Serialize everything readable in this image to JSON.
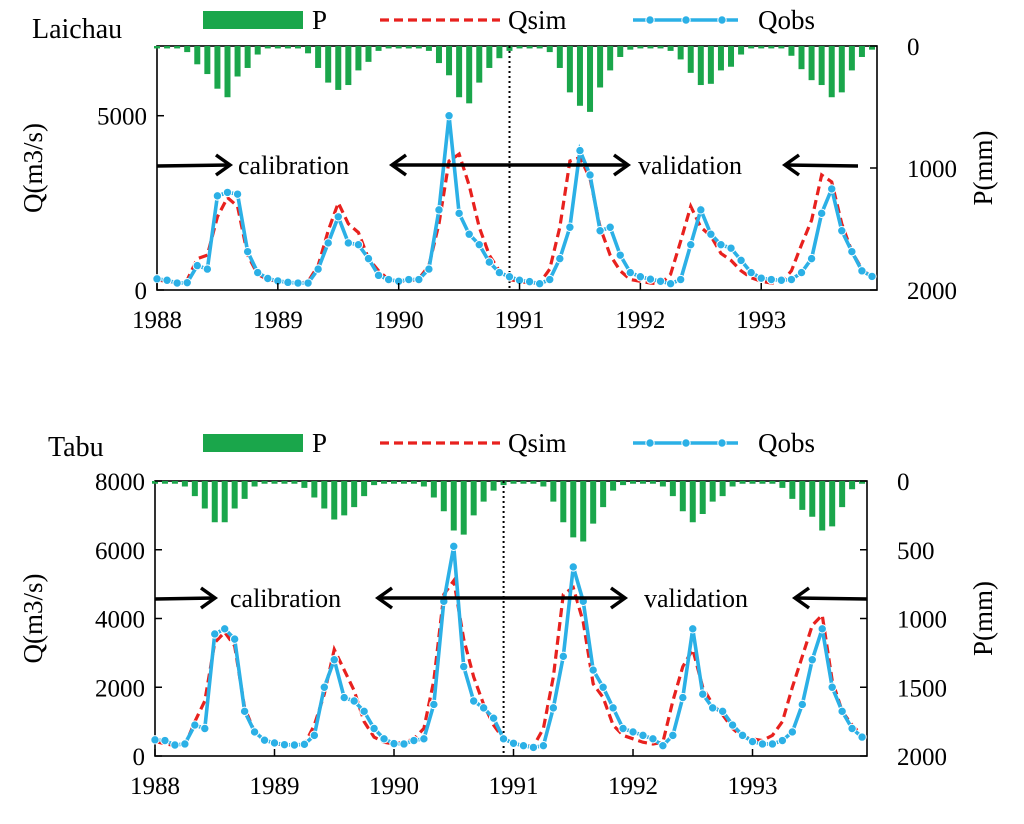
{
  "chart_data": [
    {
      "type": "line",
      "station_label": "Laichau",
      "xlabel": "",
      "ylabel": "Q(m3/s)",
      "y2label": "P(mm)",
      "xlim": [
        1988.0,
        1993.958
      ],
      "ylim": [
        0,
        7000
      ],
      "y_ticks": [
        0,
        5000
      ],
      "y2lim": [
        0,
        2000
      ],
      "y2_ticks": [
        0,
        1000,
        2000
      ],
      "y2_reversed": true,
      "x_ticks": [
        "1988",
        "1989",
        "1990",
        "1991",
        "1992",
        "1993"
      ],
      "divider_x": 1990.917,
      "annotations": {
        "calibration": "calibration",
        "validation": "validation"
      },
      "legend": [
        {
          "name": "P",
          "style": "bar",
          "color": "#1aa64b"
        },
        {
          "name": "Qsim",
          "style": "dashed",
          "color": "#e8211e"
        },
        {
          "name": "Qobs",
          "style": "line-marker",
          "color": "#2bb0e6"
        }
      ],
      "series": [
        {
          "name": "P",
          "kind": "bar",
          "axis": "y2",
          "color": "#1aa64b",
          "values": [
            20,
            20,
            20,
            50,
            150,
            230,
            350,
            420,
            250,
            180,
            70,
            20,
            20,
            20,
            20,
            60,
            180,
            300,
            360,
            320,
            200,
            130,
            40,
            20,
            20,
            20,
            20,
            40,
            140,
            240,
            420,
            470,
            300,
            180,
            100,
            40,
            20,
            20,
            20,
            50,
            180,
            380,
            490,
            540,
            340,
            200,
            90,
            30,
            20,
            20,
            20,
            40,
            110,
            220,
            320,
            310,
            200,
            170,
            70,
            20,
            20,
            20,
            20,
            80,
            190,
            280,
            320,
            420,
            380,
            200,
            90,
            30
          ]
        },
        {
          "name": "Qsim",
          "kind": "line",
          "axis": "y1",
          "color": "#e8211e",
          "values": [
            290,
            250,
            210,
            290,
            900,
            1000,
            2100,
            2650,
            2400,
            1000,
            450,
            300,
            250,
            210,
            180,
            240,
            700,
            1700,
            2500,
            1900,
            1650,
            900,
            550,
            300,
            250,
            250,
            320,
            700,
            1900,
            3700,
            3900,
            3000,
            1800,
            1000,
            550,
            300,
            250,
            200,
            200,
            600,
            1800,
            3700,
            3800,
            3200,
            1800,
            1000,
            550,
            300,
            250,
            200,
            170,
            450,
            1400,
            2400,
            1800,
            1550,
            1050,
            850,
            550,
            350,
            250,
            200,
            220,
            550,
            1300,
            2000,
            3300,
            3100,
            1900,
            1100,
            600,
            350
          ]
        },
        {
          "name": "Qobs",
          "kind": "line",
          "axis": "y1",
          "color": "#2bb0e6",
          "values": [
            320,
            280,
            200,
            210,
            700,
            600,
            2700,
            2800,
            2750,
            1100,
            500,
            330,
            260,
            220,
            200,
            200,
            600,
            1350,
            2100,
            1350,
            1300,
            900,
            420,
            300,
            250,
            300,
            300,
            600,
            2300,
            5000,
            2200,
            1600,
            1300,
            800,
            500,
            380,
            280,
            240,
            180,
            300,
            900,
            1800,
            4000,
            3300,
            1700,
            1800,
            1000,
            500,
            380,
            310,
            250,
            180,
            300,
            1300,
            2300,
            1600,
            1300,
            1200,
            850,
            500,
            340,
            300,
            280,
            300,
            500,
            900,
            2200,
            2900,
            1700,
            1100,
            550,
            390
          ]
        }
      ]
    },
    {
      "type": "line",
      "station_label": "Tabu",
      "xlabel": "",
      "ylabel": "Q(m3/s)",
      "y2label": "P(mm)",
      "xlim": [
        1988.0,
        1993.958
      ],
      "ylim": [
        0,
        8000
      ],
      "y_ticks": [
        0,
        2000,
        4000,
        6000,
        8000
      ],
      "y2lim": [
        0,
        2000
      ],
      "y2_ticks": [
        0,
        500,
        1000,
        1500,
        2000
      ],
      "y2_reversed": true,
      "x_ticks": [
        "1988",
        "1989",
        "1990",
        "1991",
        "1992",
        "1993"
      ],
      "divider_x": 1990.917,
      "annotations": {
        "calibration": "calibration",
        "validation": "validation"
      },
      "legend": [
        {
          "name": "P",
          "style": "bar",
          "color": "#1aa64b"
        },
        {
          "name": "Qsim",
          "style": "dashed",
          "color": "#e8211e"
        },
        {
          "name": "Qobs",
          "style": "line-marker",
          "color": "#2bb0e6"
        }
      ],
      "series": [
        {
          "name": "P",
          "kind": "bar",
          "axis": "y2",
          "color": "#1aa64b",
          "values": [
            20,
            20,
            20,
            40,
            110,
            200,
            300,
            300,
            200,
            130,
            40,
            20,
            20,
            20,
            20,
            50,
            120,
            200,
            280,
            250,
            190,
            110,
            30,
            20,
            20,
            20,
            20,
            40,
            120,
            220,
            360,
            390,
            250,
            150,
            70,
            30,
            20,
            20,
            20,
            40,
            150,
            300,
            410,
            440,
            310,
            190,
            70,
            30,
            20,
            20,
            20,
            40,
            110,
            220,
            300,
            240,
            150,
            110,
            40,
            20,
            20,
            20,
            20,
            50,
            130,
            210,
            260,
            360,
            330,
            190,
            60,
            20
          ]
        },
        {
          "name": "Qsim",
          "kind": "line",
          "axis": "y1",
          "color": "#e8211e",
          "values": [
            420,
            360,
            300,
            300,
            1000,
            1600,
            3300,
            3600,
            3200,
            1400,
            700,
            450,
            350,
            330,
            320,
            330,
            900,
            1800,
            3100,
            2500,
            1900,
            1000,
            550,
            400,
            350,
            400,
            500,
            800,
            2200,
            4700,
            5100,
            3400,
            2300,
            1500,
            900,
            500,
            370,
            300,
            280,
            800,
            2300,
            4700,
            4900,
            3900,
            2100,
            1700,
            900,
            600,
            500,
            400,
            350,
            400,
            1600,
            2600,
            3100,
            2000,
            1500,
            1200,
            800,
            550,
            500,
            450,
            600,
            1000,
            2000,
            2900,
            3800,
            4100,
            2200,
            1300,
            900,
            600
          ]
        },
        {
          "name": "Qobs",
          "kind": "line",
          "axis": "y1",
          "color": "#2bb0e6",
          "values": [
            470,
            450,
            320,
            350,
            900,
            800,
            3550,
            3700,
            3400,
            1300,
            700,
            460,
            380,
            330,
            320,
            340,
            600,
            2000,
            2800,
            1700,
            1600,
            1300,
            800,
            500,
            360,
            350,
            450,
            500,
            1500,
            4500,
            6100,
            2600,
            1600,
            1400,
            1100,
            500,
            370,
            300,
            250,
            300,
            1400,
            2900,
            5500,
            4500,
            2500,
            2000,
            1400,
            800,
            700,
            600,
            500,
            300,
            600,
            1700,
            3700,
            1800,
            1400,
            1300,
            900,
            600,
            420,
            350,
            350,
            450,
            700,
            1500,
            2800,
            3700,
            2000,
            1300,
            800,
            550
          ]
        }
      ]
    }
  ]
}
